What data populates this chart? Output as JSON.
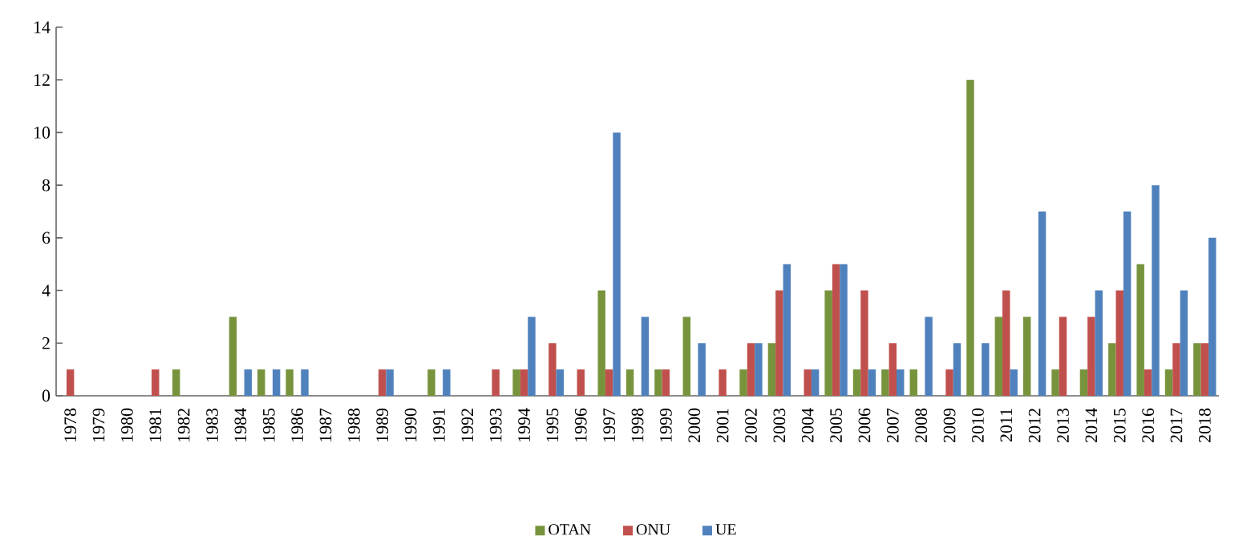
{
  "chart_data": {
    "type": "bar",
    "categories": [
      "1978",
      "1979",
      "1980",
      "1981",
      "1982",
      "1983",
      "1984",
      "1985",
      "1986",
      "1987",
      "1988",
      "1989",
      "1990",
      "1991",
      "1992",
      "1993",
      "1994",
      "1995",
      "1996",
      "1997",
      "1998",
      "1999",
      "2000",
      "2001",
      "2002",
      "2003",
      "2004",
      "2005",
      "2006",
      "2007",
      "2008",
      "2009",
      "2010",
      "2011",
      "2012",
      "2013",
      "2014",
      "2015",
      "2016",
      "2017",
      "2018"
    ],
    "series": [
      {
        "name": "OTAN",
        "color": "#77933c",
        "values": [
          0,
          0,
          0,
          0,
          1,
          0,
          3,
          1,
          1,
          0,
          0,
          0,
          0,
          1,
          0,
          0,
          1,
          0,
          0,
          4,
          1,
          1,
          3,
          0,
          1,
          2,
          0,
          4,
          1,
          1,
          1,
          0,
          12,
          3,
          3,
          1,
          1,
          2,
          5,
          1,
          2
        ]
      },
      {
        "name": "ONU",
        "color": "#c0504d",
        "values": [
          1,
          0,
          0,
          1,
          0,
          0,
          0,
          0,
          0,
          0,
          0,
          1,
          0,
          0,
          0,
          1,
          1,
          2,
          1,
          1,
          0,
          1,
          0,
          1,
          2,
          4,
          1,
          5,
          4,
          2,
          0,
          1,
          0,
          4,
          0,
          3,
          3,
          4,
          1,
          2,
          2
        ]
      },
      {
        "name": "UE",
        "color": "#4f81bd",
        "values": [
          0,
          0,
          0,
          0,
          0,
          0,
          1,
          1,
          1,
          0,
          0,
          1,
          0,
          1,
          0,
          0,
          3,
          1,
          0,
          10,
          3,
          0,
          2,
          0,
          2,
          5,
          1,
          5,
          1,
          1,
          3,
          2,
          2,
          1,
          7,
          0,
          4,
          7,
          8,
          4,
          6
        ]
      }
    ],
    "ylim": [
      0,
      14
    ],
    "yticks": [
      0,
      2,
      4,
      6,
      8,
      10,
      12,
      14
    ],
    "grid": false,
    "legend": "bottom"
  }
}
